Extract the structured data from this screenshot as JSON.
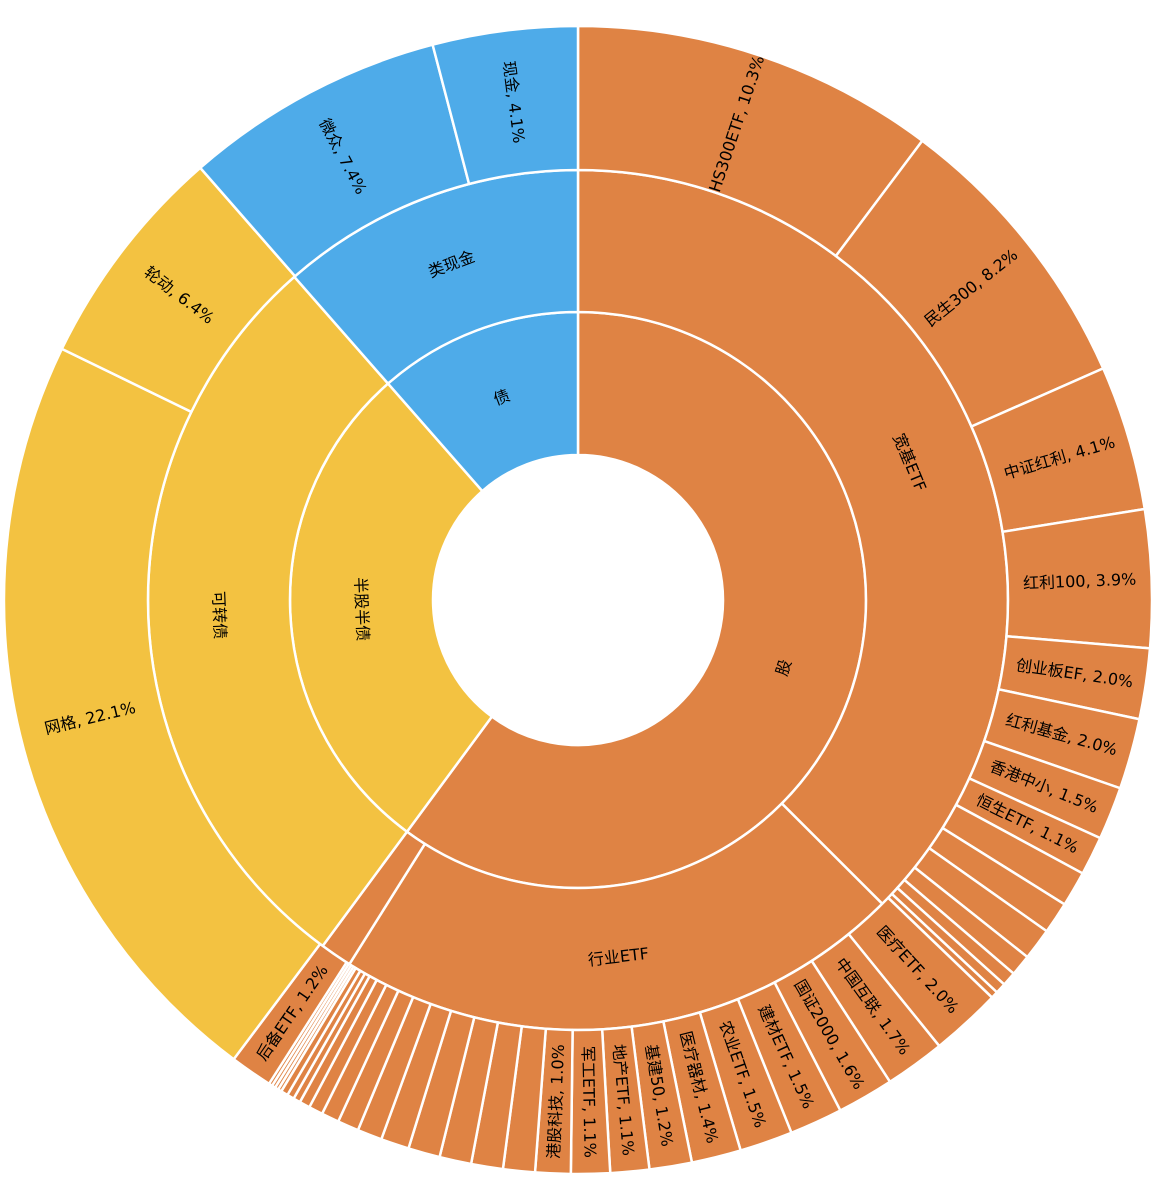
{
  "chart_data": {
    "type": "sunburst",
    "title": "",
    "colors": {
      "股": "#DF8344",
      "半股半债": "#F3C241",
      "债": "#4EABE9"
    },
    "rings": {
      "inner": [
        {
          "label": "股",
          "value": 60.3,
          "color": "#DF8344"
        },
        {
          "label": "半股半债",
          "value": 28.5,
          "color": "#F3C241"
        },
        {
          "label": "债",
          "value": 11.5,
          "color": "#4EABE9"
        }
      ],
      "middle": [
        {
          "label": "宽基ETF",
          "value": 37.6,
          "color": "#DF8344"
        },
        {
          "label": "行业ETF",
          "value": 21.5,
          "color": "#DF8344"
        },
        {
          "label": "",
          "value": 1.2,
          "color": "#DF8344"
        },
        {
          "label": "可转债",
          "value": 28.5,
          "color": "#F3C241"
        },
        {
          "label": "类现金",
          "value": 11.5,
          "color": "#4EABE9"
        }
      ],
      "outer": [
        {
          "label": "HS300ETF, 10.3%",
          "value": 10.3,
          "color": "#DF8344"
        },
        {
          "label": "民生300, 8.2%",
          "value": 8.2,
          "color": "#DF8344"
        },
        {
          "label": "中证红利, 4.1%",
          "value": 4.1,
          "color": "#DF8344"
        },
        {
          "label": "红利100, 3.9%",
          "value": 3.9,
          "color": "#DF8344"
        },
        {
          "label": "创业板EF, 2.0%",
          "value": 2.0,
          "color": "#DF8344"
        },
        {
          "label": "红利基金, 2.0%",
          "value": 2.0,
          "color": "#DF8344"
        },
        {
          "label": "香港中小, 1.5%",
          "value": 1.5,
          "color": "#DF8344"
        },
        {
          "label": "恒生ETF, 1.1%",
          "value": 1.1,
          "color": "#DF8344"
        },
        {
          "label": "",
          "value": 1.0,
          "color": "#DF8344"
        },
        {
          "label": "",
          "value": 0.9,
          "color": "#DF8344"
        },
        {
          "label": "",
          "value": 0.9,
          "color": "#DF8344"
        },
        {
          "label": "",
          "value": 0.6,
          "color": "#DF8344"
        },
        {
          "label": "",
          "value": 0.4,
          "color": "#DF8344"
        },
        {
          "label": "",
          "value": 0.3,
          "color": "#DF8344"
        },
        {
          "label": "",
          "value": 0.2,
          "color": "#DF8344"
        },
        {
          "label": "医疗ETF, 2.0%",
          "value": 2.0,
          "color": "#DF8344"
        },
        {
          "label": "中国互联, 1.7%",
          "value": 1.7,
          "color": "#DF8344"
        },
        {
          "label": "国证2000, 1.6%",
          "value": 1.6,
          "color": "#DF8344"
        },
        {
          "label": "建材ETF, 1.5%",
          "value": 1.5,
          "color": "#DF8344"
        },
        {
          "label": "农业ETF, 1.5%",
          "value": 1.5,
          "color": "#DF8344"
        },
        {
          "label": "医疗器材, 1.4%",
          "value": 1.4,
          "color": "#DF8344"
        },
        {
          "label": "基建50, 1.2%",
          "value": 1.2,
          "color": "#DF8344"
        },
        {
          "label": "地产ETF, 1.1%",
          "value": 1.1,
          "color": "#DF8344"
        },
        {
          "label": "军工ETF, 1.1%",
          "value": 1.1,
          "color": "#DF8344"
        },
        {
          "label": "港股科技, 1.0%",
          "value": 1.0,
          "color": "#DF8344"
        },
        {
          "label": "",
          "value": 0.9,
          "color": "#DF8344"
        },
        {
          "label": "",
          "value": 0.9,
          "color": "#DF8344"
        },
        {
          "label": "",
          "value": 0.9,
          "color": "#DF8344"
        },
        {
          "label": "",
          "value": 0.9,
          "color": "#DF8344"
        },
        {
          "label": "",
          "value": 0.8,
          "color": "#DF8344"
        },
        {
          "label": "",
          "value": 0.7,
          "color": "#DF8344"
        },
        {
          "label": "",
          "value": 0.6,
          "color": "#DF8344"
        },
        {
          "label": "",
          "value": 0.5,
          "color": "#DF8344"
        },
        {
          "label": "",
          "value": 0.4,
          "color": "#DF8344"
        },
        {
          "label": "",
          "value": 0.3,
          "color": "#DF8344"
        },
        {
          "label": "",
          "value": 0.2,
          "color": "#DF8344"
        },
        {
          "label": "",
          "value": 0.2,
          "color": "#DF8344"
        },
        {
          "label": "",
          "value": 0.2,
          "color": "#DF8344"
        },
        {
          "label": "",
          "value": 0.1,
          "color": "#DF8344"
        },
        {
          "label": "",
          "value": 0.1,
          "color": "#DF8344"
        },
        {
          "label": "",
          "value": 0.1,
          "color": "#DF8344"
        },
        {
          "label": "",
          "value": 0.1,
          "color": "#DF8344"
        },
        {
          "label": "后备ETF, 1.2%",
          "value": 1.2,
          "color": "#DF8344"
        },
        {
          "label": "网格, 22.1%",
          "value": 22.1,
          "color": "#F3C241"
        },
        {
          "label": "轮动, 6.4%",
          "value": 6.4,
          "color": "#F3C241"
        },
        {
          "label": "微众, 7.4%",
          "value": 7.4,
          "color": "#4EABE9"
        },
        {
          "label": "现金, 4.1%",
          "value": 4.1,
          "color": "#4EABE9"
        }
      ]
    },
    "legend": "none",
    "grid": false
  }
}
